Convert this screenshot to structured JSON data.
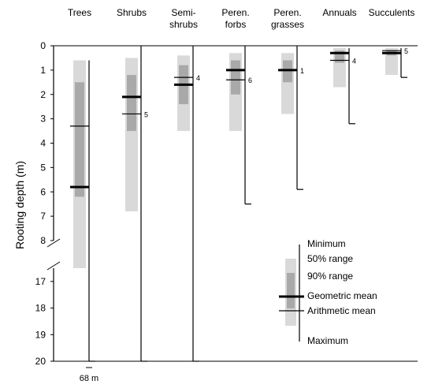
{
  "chart_data": {
    "type": "box",
    "title": "",
    "ylabel": "Rooting depth (m)",
    "xlabel": "",
    "categories": [
      {
        "lines": [
          "Trees"
        ]
      },
      {
        "lines": [
          "Shrubs"
        ]
      },
      {
        "lines": [
          "Semi-",
          "shrubs"
        ]
      },
      {
        "lines": [
          "Peren.",
          "forbs"
        ]
      },
      {
        "lines": [
          "Peren.",
          "grasses"
        ]
      },
      {
        "lines": [
          "Annuals"
        ]
      },
      {
        "lines": [
          "Succulents"
        ]
      }
    ],
    "y_ticks_upper": [
      "0",
      "1",
      "2",
      "3",
      "4",
      "5",
      "6",
      "7",
      "8"
    ],
    "y_ticks_lower": [
      "17",
      "18",
      "19",
      "20"
    ],
    "y_axis_break": {
      "upper_range": [
        0,
        8
      ],
      "lower_range": [
        16.5,
        20
      ]
    },
    "groups": [
      {
        "min": 0.6,
        "p5": 0.6,
        "p25": 1.5,
        "median": 5.8,
        "mean": 3.3,
        "p75": 6.2,
        "p95": 16.5,
        "max": 68,
        "clip_note": "68 m",
        "label": ""
      },
      {
        "min": 0.0,
        "p5": 0.5,
        "p25": 1.2,
        "median": 2.1,
        "mean": 2.8,
        "p75": 3.5,
        "p95": 6.8,
        "max": 20,
        "label": "5"
      },
      {
        "min": 0.0,
        "p5": 0.4,
        "p25": 0.8,
        "median": 1.6,
        "mean": 1.3,
        "p75": 2.4,
        "p95": 3.5,
        "max": 20,
        "label": "4"
      },
      {
        "min": 0.0,
        "p5": 0.3,
        "p25": 0.6,
        "median": 1.0,
        "mean": 1.4,
        "p75": 2.0,
        "p95": 3.5,
        "max": 6.5,
        "label": "6"
      },
      {
        "min": 0.0,
        "p5": 0.3,
        "p25": 0.6,
        "median": 1.0,
        "mean": 1.0,
        "p75": 1.5,
        "p95": 2.8,
        "max": 5.9,
        "label": "1"
      },
      {
        "min": 0.1,
        "p5": 0.1,
        "p25": 0.2,
        "median": 0.3,
        "mean": 0.6,
        "p75": 0.7,
        "p95": 1.7,
        "max": 3.2,
        "label": "4"
      },
      {
        "min": 0.1,
        "p5": 0.1,
        "p25": 0.2,
        "median": 0.3,
        "mean": 0.2,
        "p75": 0.4,
        "p95": 1.2,
        "max": 1.3,
        "label": "5"
      }
    ],
    "legend": {
      "placement": "bottom-right",
      "items": {
        "minimum": "Minimum",
        "range50": "50% range",
        "range90": "90% range",
        "geomean": "Geometric mean",
        "arithmean": "Arithmetic mean",
        "maximum": "Maximum"
      }
    },
    "colors": {
      "range90": "#d9d9d9",
      "range50": "#a9a9a9",
      "line": "#000000",
      "mean_line": "#7f7f7f"
    }
  }
}
